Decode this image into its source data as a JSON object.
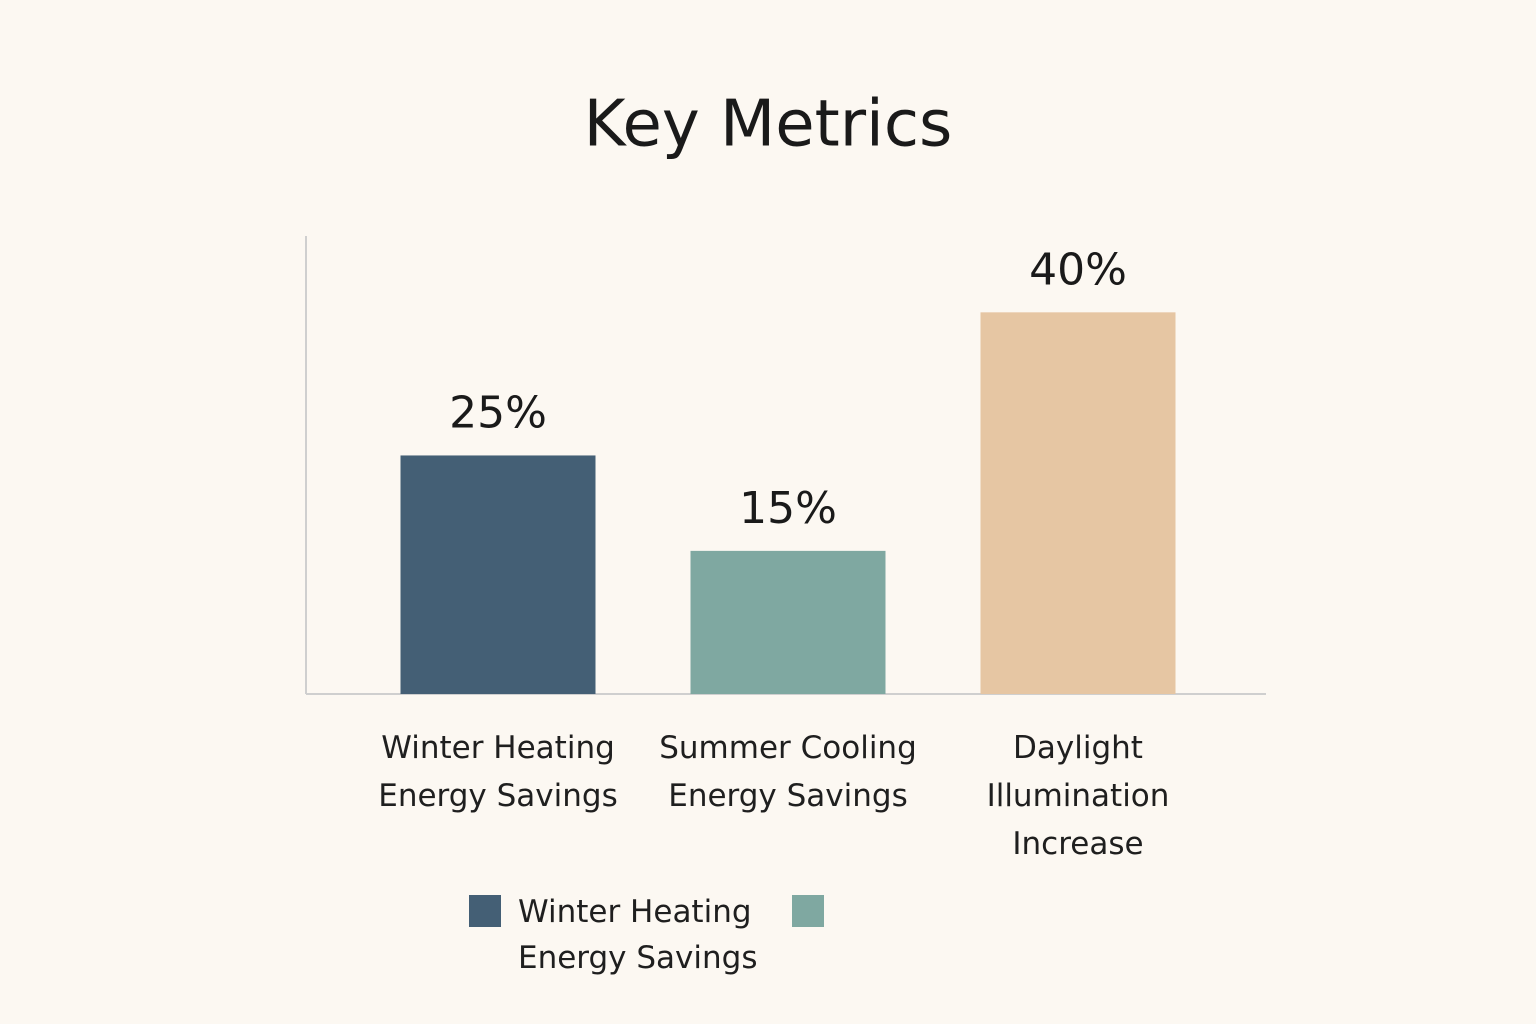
{
  "chart_data": {
    "type": "bar",
    "title": "Key Metrics",
    "categories": [
      "Winter Heating Energy Savings",
      "Summer Cooling Energy Savings",
      "Daylight Illumination Increase"
    ],
    "values": [
      25,
      15,
      40
    ],
    "value_labels": [
      "25%",
      "15%",
      "40%"
    ],
    "colors": [
      "#445f75",
      "#7fa8a1",
      "#e6c6a3"
    ],
    "ylim": [
      0,
      48
    ],
    "legend": [
      {
        "name": "Winter Heating Energy Savings",
        "color": "#445f75"
      },
      {
        "name": null,
        "color": "#7fa8a1"
      }
    ]
  }
}
